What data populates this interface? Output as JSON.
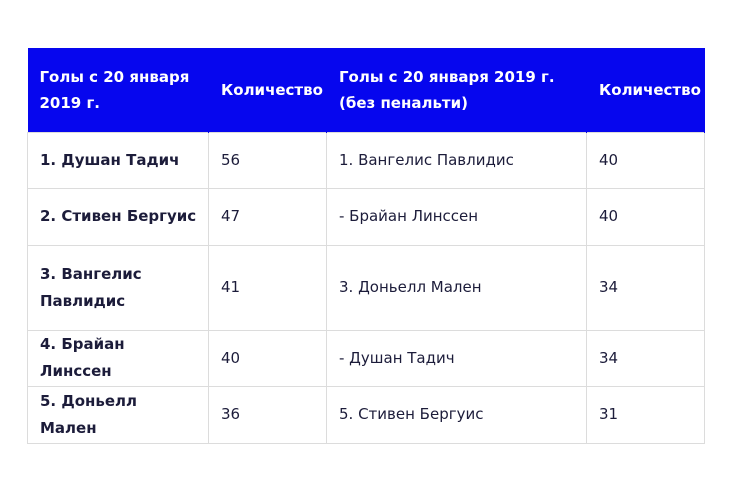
{
  "table": {
    "headers": [
      "Голы с 20 января 2019 г.",
      "Количество",
      "Голы с 20 января 2019 г. (без пенальти)",
      "Количество"
    ],
    "rows": [
      [
        "1. Душан Тадич",
        "56",
        "1. Вангелис Павлидис",
        "40"
      ],
      [
        "2. Стивен Бергуис",
        "47",
        "- Брайан Линссен",
        "40"
      ],
      [
        "3. Вангелис Павлидис",
        "41",
        "3. Доньелл Мален",
        "34"
      ],
      [
        "4. Брайан Линссен",
        "40",
        "- Душан Тадич",
        "34"
      ],
      [
        "5. Доньелл Мален",
        "36",
        "5. Стивен Бергуис",
        "31"
      ]
    ]
  },
  "colors": {
    "header_background": "#0606ee",
    "header_text": "#ffffff",
    "body_text": "#1c1c3a",
    "border": "#dcdcdc"
  }
}
